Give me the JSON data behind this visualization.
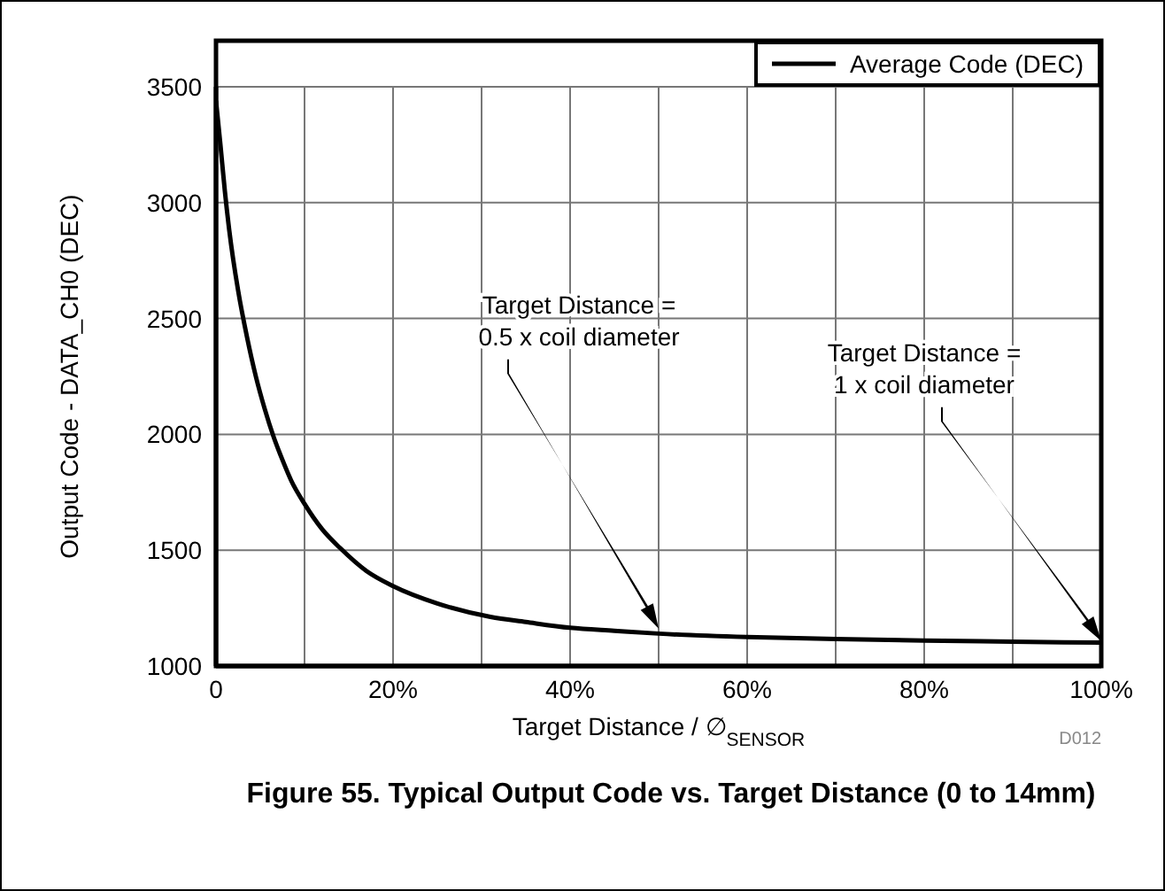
{
  "chart_data": {
    "type": "line",
    "title": "Figure 55. Typical Output Code vs. Target Distance (0 to 14mm)",
    "xlabel": "Target Distance / ∅$_{SENSOR}$",
    "ylabel": "Output Code - DATA_CH0 (DEC)",
    "x": [
      0,
      0.5,
      1,
      1.5,
      2.5,
      3.5,
      4.5,
      5.5,
      6.5,
      7.5,
      8.5,
      10,
      12,
      14,
      17,
      20,
      25,
      31,
      35,
      40,
      45,
      50,
      60,
      70,
      80,
      90,
      100
    ],
    "series": [
      {
        "name": "Average Code (DEC)",
        "color": "#000000",
        "values": [
          3440,
          3250,
          3050,
          2880,
          2620,
          2420,
          2250,
          2110,
          1990,
          1890,
          1800,
          1700,
          1590,
          1510,
          1410,
          1345,
          1270,
          1212,
          1190,
          1165,
          1152,
          1140,
          1125,
          1117,
          1110,
          1105,
          1101
        ]
      }
    ],
    "xlim": [
      0,
      100
    ],
    "xticks": [
      0,
      {
        "value": 10,
        "label": null
      },
      {
        "value": 20,
        "label": "20%"
      },
      {
        "value": 30,
        "label": null
      },
      {
        "value": 40,
        "label": "40%"
      },
      {
        "value": 50,
        "label": null
      },
      {
        "value": 60,
        "label": "60%"
      },
      {
        "value": 70,
        "label": null
      },
      {
        "value": 80,
        "label": "80%"
      },
      {
        "value": 90,
        "label": null
      },
      {
        "value": 100,
        "label": "100%"
      }
    ],
    "ylim": [
      1000,
      3500
    ],
    "yticks": [
      1000,
      1500,
      2000,
      2500,
      3000,
      3500
    ],
    "grid": true,
    "legend": "top right",
    "annotations": [
      "Target Distance =\n0.5 x coil diameter",
      "Target Distance =\n1 x coil diameter",
      "D012"
    ]
  }
}
